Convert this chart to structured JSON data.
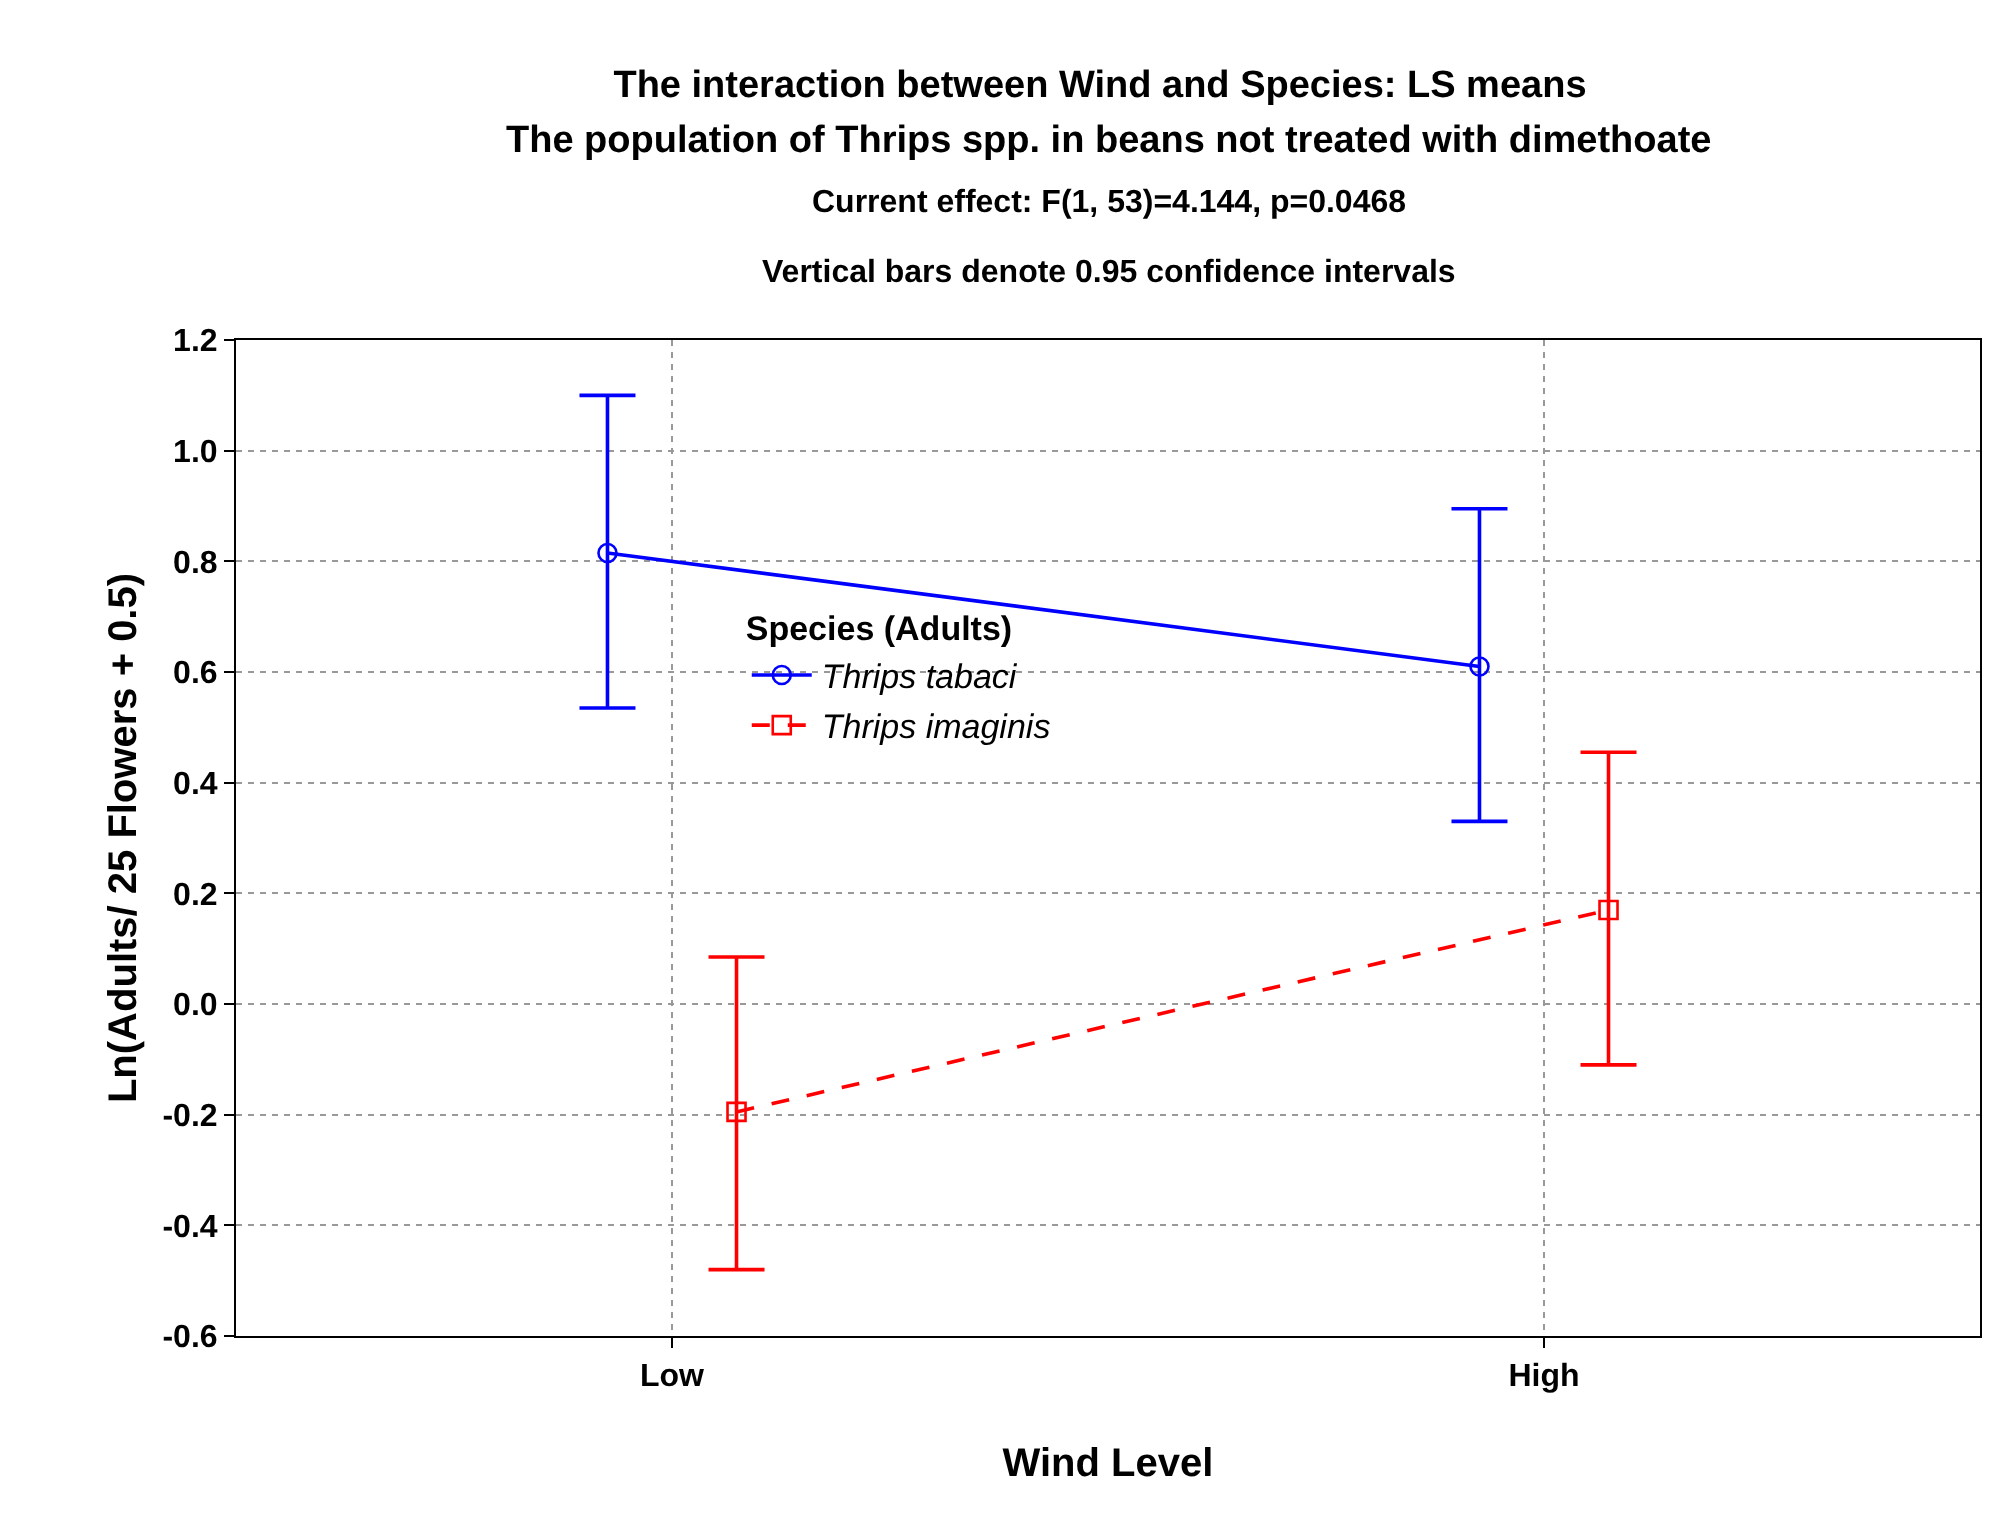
{
  "chart_data": {
    "type": "line",
    "title": "The interaction between Wind and Species: LS means",
    "subtitle": "The population of Thrips spp. in beans not treated with dimethoate",
    "annotations": [
      "Current effect: F(1, 53)=4.144, p=0.0468",
      "Vertical bars denote 0.95 confidence intervals"
    ],
    "xlabel": "Wind Level",
    "ylabel": "Ln(Adults/ 25 Flowers + 0.5)",
    "legend_title": "Species (Adults)",
    "categories": [
      "Low",
      "High"
    ],
    "series": [
      {
        "name": "Thrips tabaci",
        "color": "#0000ff",
        "values": [
          0.815,
          0.61
        ],
        "errors": [
          [
            0.535,
            1.1
          ],
          [
            0.33,
            0.895
          ]
        ],
        "marker": "circle",
        "line_style": "solid"
      },
      {
        "name": "Thrips imaginis",
        "color": "#ff0000",
        "values": [
          -0.195,
          0.17
        ],
        "errors": [
          [
            -0.48,
            0.085
          ],
          [
            -0.11,
            0.455
          ]
        ],
        "marker": "square",
        "line_style": "dashed"
      }
    ],
    "ylim": [
      -0.6,
      1.2
    ],
    "yticks": [
      -0.6,
      -0.4,
      -0.2,
      {
        "value": 0,
        "label": "0.0"
      },
      0.2,
      0.4,
      0.6,
      0.8,
      {
        "value": 1,
        "label": "1.0"
      },
      1.2
    ],
    "grid": true,
    "legend": "left"
  }
}
